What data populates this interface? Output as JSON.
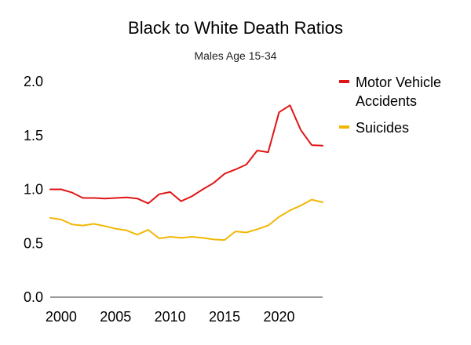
{
  "chart_data": {
    "type": "line",
    "title": "Black to White Death Ratios",
    "subtitle": "Males Age 15-34",
    "xlabel": "",
    "ylabel": "",
    "xlim": [
      1999,
      2024
    ],
    "ylim": [
      0,
      2.0
    ],
    "grid": false,
    "legend_position": "right",
    "x_tick_labels": [
      "2000",
      "2005",
      "2010",
      "2015",
      "2020"
    ],
    "y_tick_labels": [
      "0.0",
      "0.5",
      "1.0",
      "1.5",
      "2.0"
    ],
    "x": [
      1999,
      2000,
      2001,
      2002,
      2003,
      2004,
      2005,
      2006,
      2007,
      2008,
      2009,
      2010,
      2011,
      2012,
      2013,
      2014,
      2015,
      2016,
      2017,
      2018,
      2019,
      2020,
      2021,
      2022,
      2023,
      2024
    ],
    "series": [
      {
        "name": "Motor Vehicle Accidents",
        "legend_lines": [
          "Motor Vehicle",
          "Accidents"
        ],
        "color": "#e01515",
        "values": [
          1.0,
          1.0,
          0.97,
          0.92,
          0.92,
          0.915,
          0.92,
          0.925,
          0.915,
          0.87,
          0.955,
          0.975,
          0.89,
          0.935,
          1.0,
          1.06,
          1.145,
          1.185,
          1.23,
          1.36,
          1.345,
          1.715,
          1.78,
          1.55,
          1.41,
          1.405
        ]
      },
      {
        "name": "Suicides",
        "legend_lines": [
          "Suicides"
        ],
        "color": "#f2b705",
        "values": [
          0.735,
          0.72,
          0.675,
          0.665,
          0.68,
          0.66,
          0.635,
          0.62,
          0.58,
          0.625,
          0.545,
          0.56,
          0.55,
          0.56,
          0.55,
          0.535,
          0.53,
          0.61,
          0.6,
          0.63,
          0.665,
          0.745,
          0.805,
          0.85,
          0.905,
          0.88
        ]
      }
    ]
  }
}
